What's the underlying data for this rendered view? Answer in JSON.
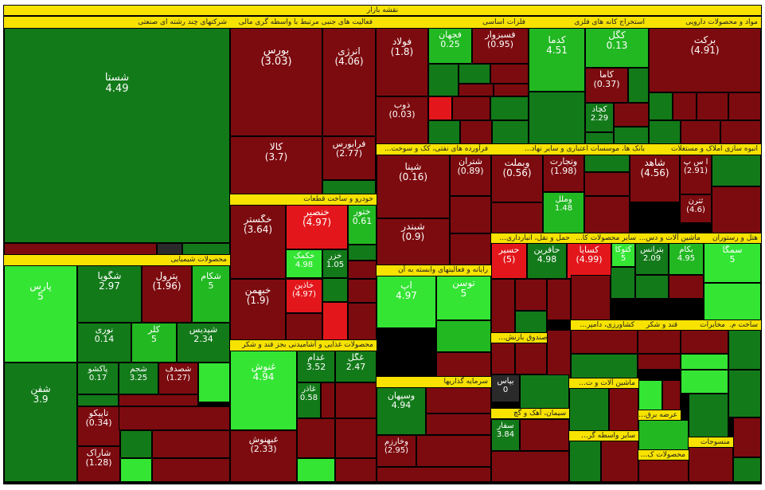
{
  "title": "نقشه بازار",
  "colors": {
    "dark_green": "#137a1a",
    "green": "#22b822",
    "bright_green": "#34e534",
    "dark_red": "#7c0b0f",
    "red": "#e3171b",
    "dark_grey": "#2a2a2a",
    "header_yellow": "#f7e200"
  },
  "chart_data": {
    "type": "treemap",
    "title": "نقشه بازار",
    "sectors": [
      {
        "name": "شرکتهای چند رشته ای صنعتی"
      },
      {
        "name": "فعالیت های جنبی مرتبط با واسطه گری مالی"
      },
      {
        "name": "فلزات اساسی"
      },
      {
        "name": "استخراج کانه های فلزی"
      },
      {
        "name": "مواد و محصولات دارویی"
      },
      {
        "name": "خودرو و ساخت قطعات"
      },
      {
        "name": "فرآورده های نفتی، کک و سوخت..."
      },
      {
        "name": "بانک ها، موسسات اعتباری و سایر نهاد..."
      },
      {
        "name": "انبوه سازی املاک و مستغلات"
      },
      {
        "name": "محصولات شیمیایی"
      },
      {
        "name": "رایانه و فعالیتهای وابسته به آن"
      },
      {
        "name": "حمل و نقل، انبارداری..."
      },
      {
        "name": "سایر محصولات کا..."
      },
      {
        "name": "ماشین آلات و دس..."
      },
      {
        "name": "هتل و رستوران"
      },
      {
        "name": "محصولات غذایی و آشامیدنی بجز قند و شکر"
      },
      {
        "name": "بیمه و صندوق بازنش..."
      },
      {
        "name": "کشاورزی، دامپر..."
      },
      {
        "name": "قند و شکر"
      },
      {
        "name": "مخابرات"
      },
      {
        "name": "ساخت م..."
      },
      {
        "name": "سرمایه گذاریها"
      },
      {
        "name": "ماشین آلات و ت..."
      },
      {
        "name": "سیمان، آهک و گچ"
      },
      {
        "name": "سایر واسطه گر..."
      },
      {
        "name": "محصولات ک..."
      },
      {
        "name": "عرضه برق..."
      },
      {
        "name": "منسوجات"
      }
    ],
    "stocks": [
      {
        "name": "شستا",
        "value": "4.49"
      },
      {
        "name": "بورس",
        "value": "(3.03)"
      },
      {
        "name": "انرژی",
        "value": "(4.06)"
      },
      {
        "name": "کالا",
        "value": "(3.7)"
      },
      {
        "name": "فرابورس",
        "value": "(2.77)"
      },
      {
        "name": "فولاد",
        "value": "(1.8)"
      },
      {
        "name": "فجهان",
        "value": "0.25"
      },
      {
        "name": "فسبزوار",
        "value": "(0.95)"
      },
      {
        "name": "کدما",
        "value": "4.51"
      },
      {
        "name": "کگل",
        "value": "0.13"
      },
      {
        "name": "برکت",
        "value": "(4.91)"
      },
      {
        "name": "کاما",
        "value": "(0.37)"
      },
      {
        "name": "ذوب",
        "value": "(0.03)"
      },
      {
        "name": "کچاد",
        "value": "2.29"
      },
      {
        "name": "خگستر",
        "value": "(3.64)"
      },
      {
        "name": "خنصیر",
        "value": "(4.97)"
      },
      {
        "name": "ختور",
        "value": "0.61"
      },
      {
        "name": "شپنا",
        "value": "(0.16)"
      },
      {
        "name": "شتران",
        "value": "(0.89)"
      },
      {
        "name": "وبملت",
        "value": "(0.56)"
      },
      {
        "name": "وتجارت",
        "value": "(1.98)"
      },
      {
        "name": "شاهد",
        "value": "(4.56)"
      },
      {
        "name": "خکمک",
        "value": "4.98"
      },
      {
        "name": "خزر",
        "value": "1.05"
      },
      {
        "name": "خبهمن",
        "value": "(1.9)"
      },
      {
        "name": "خاذین",
        "value": "(4.97)"
      },
      {
        "name": "پارس",
        "value": "5"
      },
      {
        "name": "شگویا",
        "value": "2.97"
      },
      {
        "name": "پترول",
        "value": "(1.96)"
      },
      {
        "name": "شکام",
        "value": "5"
      },
      {
        "name": "نوری",
        "value": "0.14"
      },
      {
        "name": "کلر",
        "value": "5"
      },
      {
        "name": "شپدیس",
        "value": "2.34"
      },
      {
        "name": "شبندر",
        "value": "(0.9)"
      },
      {
        "name": "آپ",
        "value": "4.97"
      },
      {
        "name": "توسن",
        "value": "5"
      },
      {
        "name": "حسیر",
        "value": "(5)"
      },
      {
        "name": "حآفرین",
        "value": "4.98"
      },
      {
        "name": "کسایا",
        "value": "(4.99)"
      },
      {
        "name": "کتوکا",
        "value": "5"
      },
      {
        "name": "بترانس",
        "value": "2.09"
      },
      {
        "name": "بکام",
        "value": "4.95"
      },
      {
        "name": "سمگا",
        "value": "5"
      },
      {
        "name": "غنوش",
        "value": "4.94"
      },
      {
        "name": "غدام",
        "value": "3.52"
      },
      {
        "name": "غگل",
        "value": "2.47"
      },
      {
        "name": "شفن",
        "value": "3.9"
      },
      {
        "name": "پاکشو",
        "value": "0.17"
      },
      {
        "name": "شجم",
        "value": "3.25"
      },
      {
        "name": "شصدف",
        "value": "(1.27)"
      },
      {
        "name": "تاپیکو",
        "value": "(0.34)"
      },
      {
        "name": "شاراک",
        "value": "(1.28)"
      },
      {
        "name": "غبهنوش",
        "value": "(2.33)"
      },
      {
        "name": "وسپهان",
        "value": "4.94"
      },
      {
        "name": "وخارزم",
        "value": "(2.95)"
      },
      {
        "name": "سفار",
        "value": "3.84"
      },
      {
        "name": "وملل",
        "value": "1.48"
      },
      {
        "name": "غاذر",
        "value": "0.58"
      },
      {
        "name": "بپاس",
        "value": "0"
      },
      {
        "name": "آ س پ",
        "value": "(2.91)"
      },
      {
        "name": "ثترن",
        "value": "(4.6)"
      }
    ]
  }
}
